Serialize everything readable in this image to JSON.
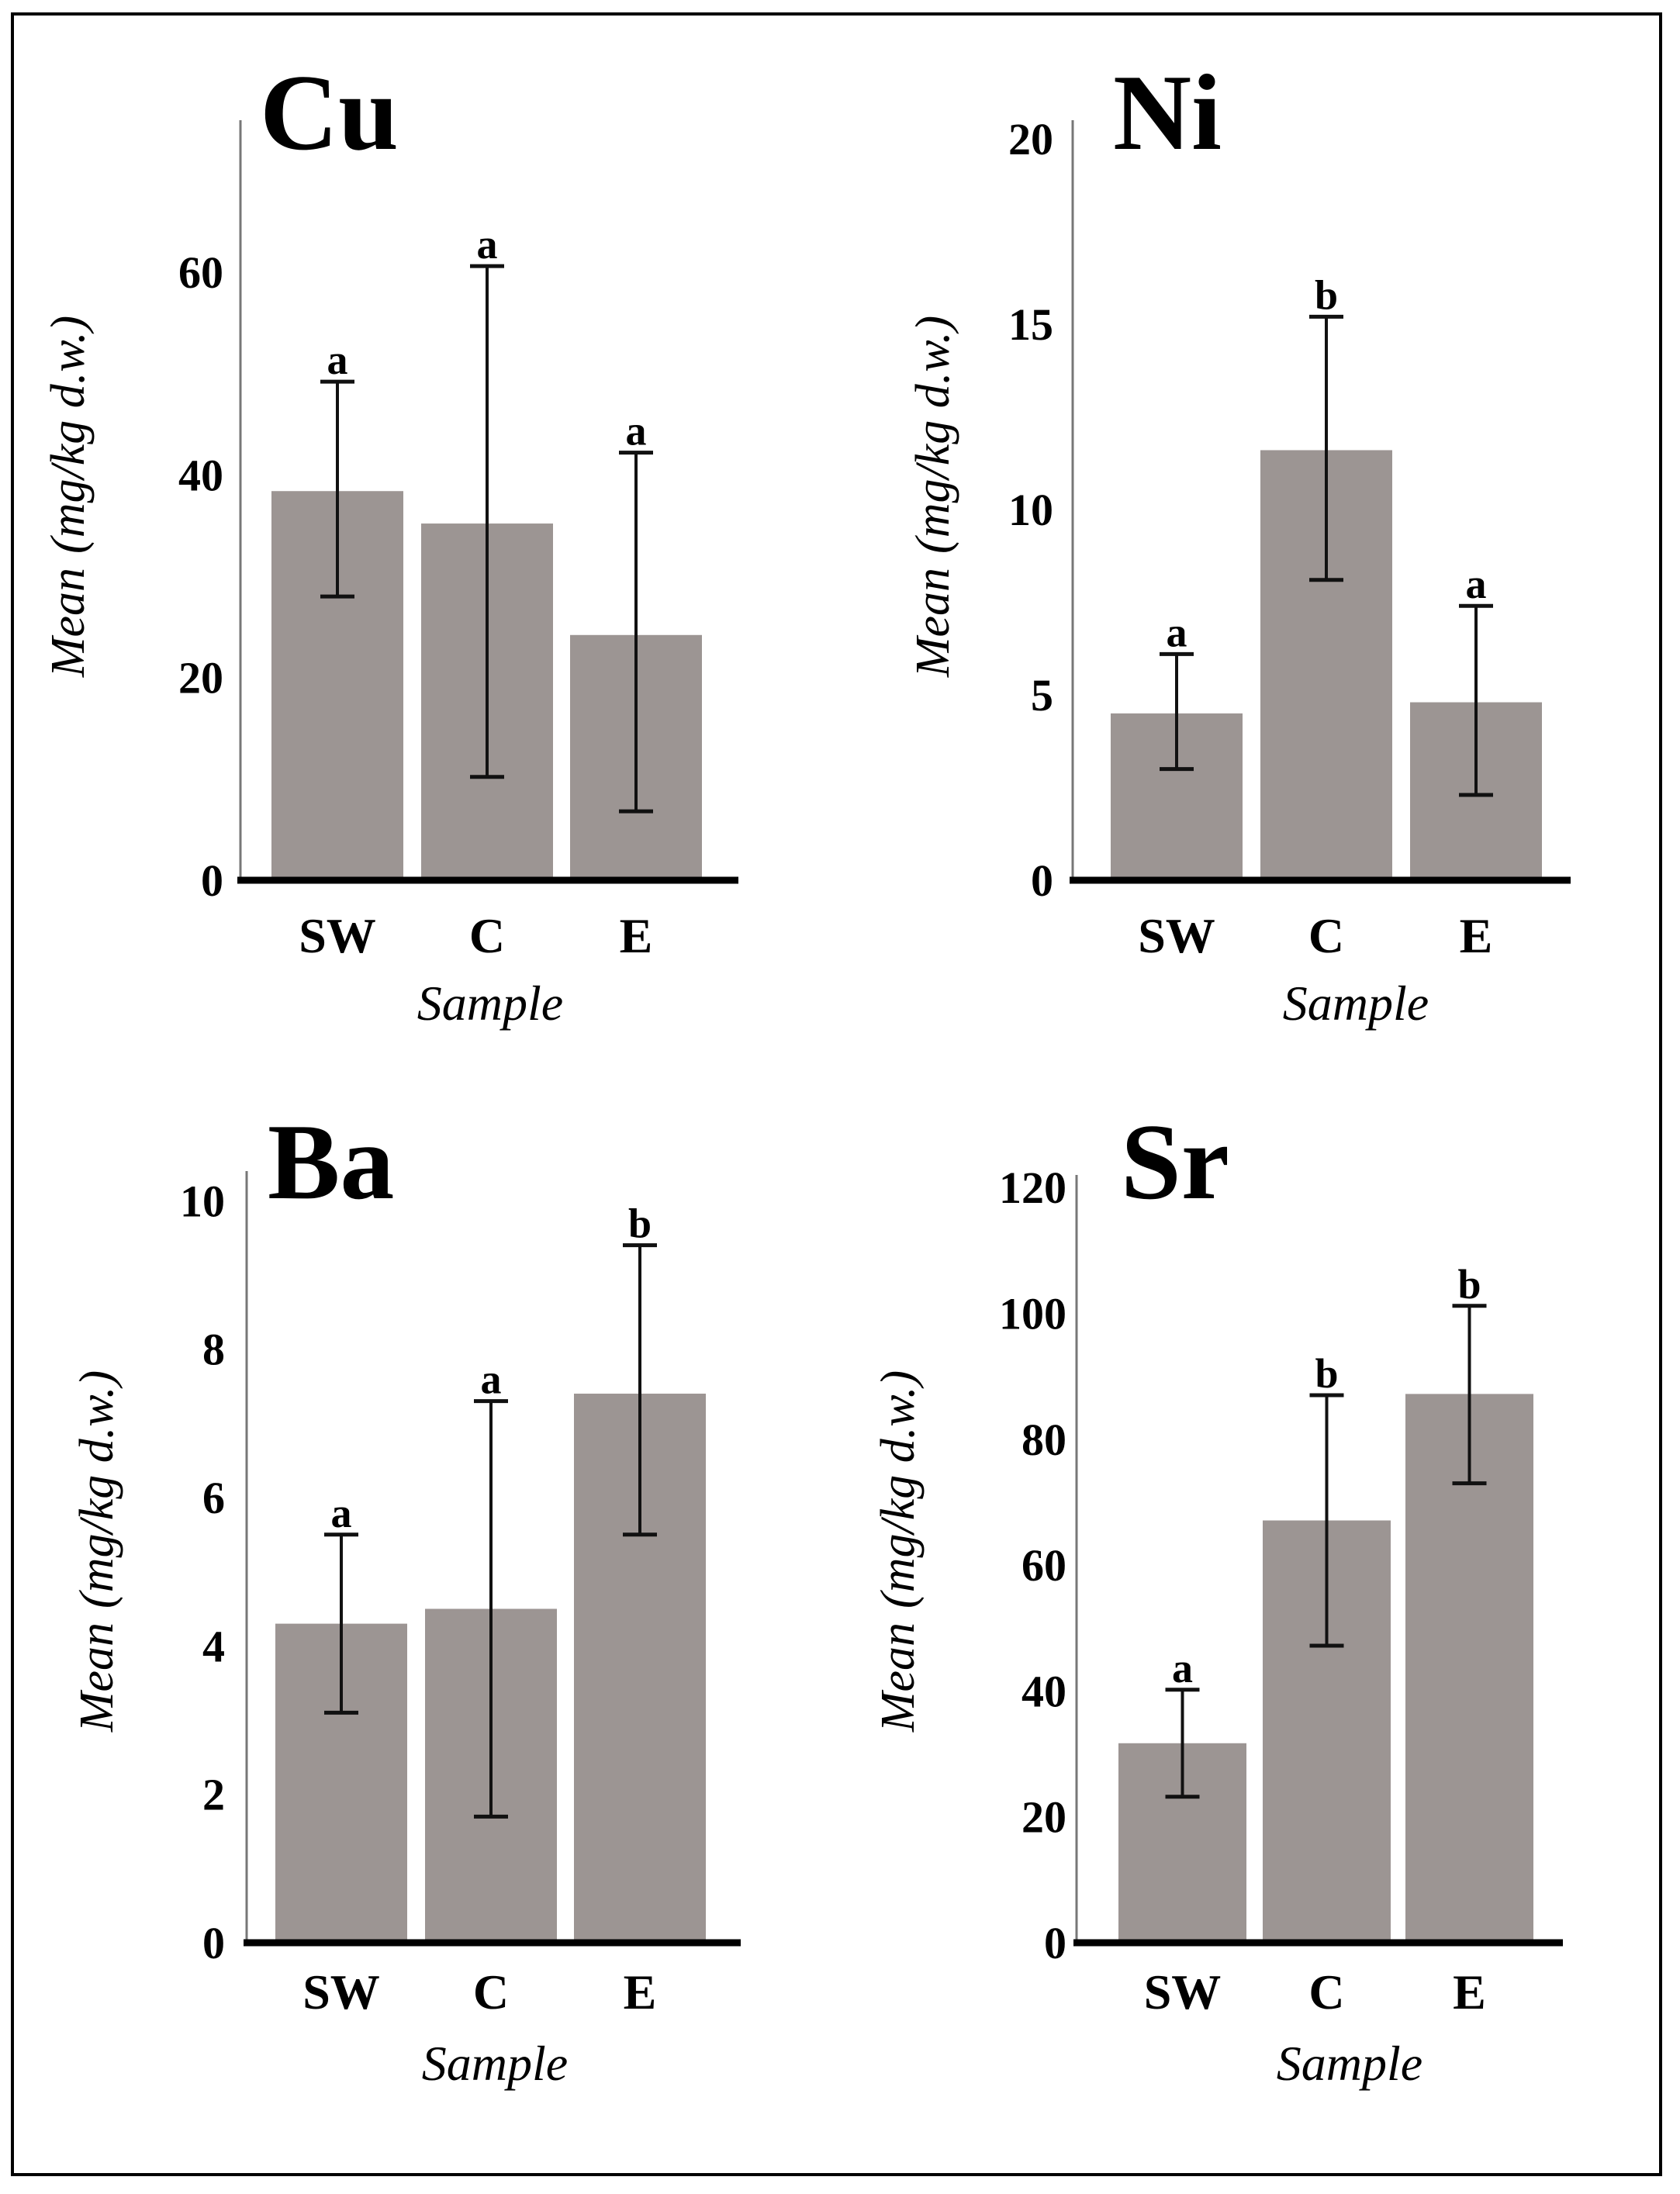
{
  "chart_data": [
    {
      "type": "bar",
      "title": "Cu",
      "xlabel": "Sample",
      "ylabel": "Mean (mg/kg d.w.)",
      "ylabel_parts": {
        "plain": "Mean",
        "unit": "(mg/kg d.w.)"
      },
      "categories": [
        "SW",
        "C",
        "E"
      ],
      "values": [
        38.4,
        35.2,
        24.2
      ],
      "error_low": [
        28.0,
        10.2,
        6.8
      ],
      "error_high": [
        49.2,
        60.6,
        42.2
      ],
      "significance": [
        "a",
        "a",
        "a"
      ],
      "ylim": [
        0,
        75
      ],
      "yticks": [
        0,
        20,
        40,
        60
      ],
      "ytick_labels": [
        "0",
        "20",
        "40",
        "60"
      ],
      "bar_color": "#9c9593",
      "grid": false
    },
    {
      "type": "bar",
      "title": "Ni",
      "xlabel": "Sample",
      "ylabel": "Mean (mg/kg d.w.)",
      "ylabel_parts": {
        "plain": "Mean",
        "unit": "(mg/kg d.w.)"
      },
      "categories": [
        "SW",
        "C",
        "E"
      ],
      "values": [
        4.5,
        11.6,
        4.8
      ],
      "error_low": [
        3.0,
        8.1,
        2.3
      ],
      "error_high": [
        6.1,
        15.2,
        7.4
      ],
      "significance": [
        "a",
        "b",
        "a"
      ],
      "ylim": [
        0,
        20.5
      ],
      "yticks": [
        0,
        5,
        10,
        15,
        20
      ],
      "ytick_labels": [
        "0",
        "5",
        "10",
        "15",
        "20"
      ],
      "bar_color": "#9c9593",
      "grid": false
    },
    {
      "type": "bar",
      "title": "Ba",
      "xlabel": "Sample",
      "ylabel": "Mean (mg/kg d.w.)",
      "ylabel_parts": {
        "plain": "Mean",
        "unit": "(mg/kg d.w.)"
      },
      "categories": [
        "SW",
        "C",
        "E"
      ],
      "values": [
        4.3,
        4.5,
        7.4
      ],
      "error_low": [
        3.1,
        1.7,
        5.5
      ],
      "error_high": [
        5.5,
        7.3,
        9.4
      ],
      "significance": [
        "a",
        "a",
        "b"
      ],
      "ylim": [
        0,
        10.4
      ],
      "yticks": [
        0,
        2,
        4,
        6,
        8,
        10
      ],
      "ytick_labels": [
        "0",
        "2",
        "4",
        "6",
        "8",
        "10"
      ],
      "bar_color": "#9c9593",
      "grid": false
    },
    {
      "type": "bar",
      "title": "Sr",
      "xlabel": "Sample",
      "ylabel": "Mean (mg/kg d.w.)",
      "ylabel_parts": {
        "plain": "Mean",
        "unit": "(mg/kg d.w.)"
      },
      "categories": [
        "SW",
        "C",
        "E"
      ],
      "values": [
        31.7,
        67.1,
        87.2
      ],
      "error_low": [
        23.2,
        47.2,
        73.0
      ],
      "error_high": [
        40.2,
        87.0,
        101.2
      ],
      "significance": [
        "a",
        "b",
        "b"
      ],
      "ylim": [
        0,
        122
      ],
      "yticks": [
        0,
        20,
        40,
        60,
        80,
        100,
        120
      ],
      "ytick_labels": [
        "0",
        "20",
        "40",
        "60",
        "80",
        "100",
        "120"
      ],
      "bar_color": "#9c9593",
      "grid": false
    }
  ]
}
